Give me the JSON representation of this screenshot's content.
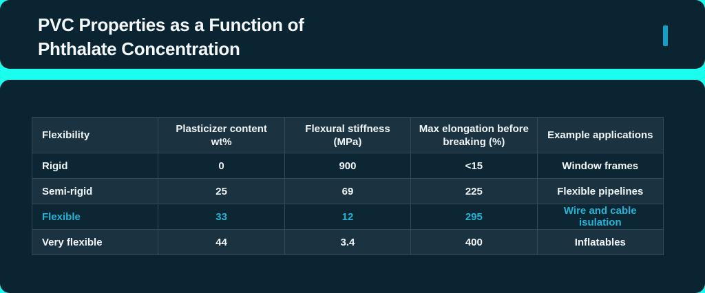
{
  "header": {
    "title_line1": "PVC Properties as a Function of",
    "title_line2": "Phthalate Concentration"
  },
  "colors": {
    "background_cyan": "#1BFDEF",
    "card_dark": "#0B2431",
    "row_light": "#1B3340",
    "row_dark": "#0C2633",
    "grid_border": "#334B58",
    "text_white": "#EFF4F6",
    "highlight_cyan": "#26B3D5",
    "accent_bar": "#149FC6"
  },
  "chart_data": {
    "type": "table",
    "title": "PVC Properties as a Function of Phthalate Concentration",
    "columns": [
      "Flexibility",
      "Plasticizer content wt%",
      "Flexural stiffness (MPa)",
      "Max elongation before breaking (%)",
      "Example applications"
    ],
    "rows": [
      {
        "cells": [
          "Rigid",
          "0",
          "900",
          "<15",
          "Window frames"
        ],
        "highlighted": false
      },
      {
        "cells": [
          "Semi-rigid",
          "25",
          "69",
          "225",
          "Flexible pipelines"
        ],
        "highlighted": false
      },
      {
        "cells": [
          "Flexible",
          "33",
          "12",
          "295",
          "Wire and cable isulation"
        ],
        "highlighted": true
      },
      {
        "cells": [
          "Very flexible",
          "44",
          "3.4",
          "400",
          "Inflatables"
        ],
        "highlighted": false
      }
    ],
    "layout": {
      "highlight_style": "highlighted row rendered in cyan text",
      "row_striping": "header light, then alternating dark/light starting dark",
      "first_column_align": "left",
      "other_columns_align": "center"
    }
  }
}
